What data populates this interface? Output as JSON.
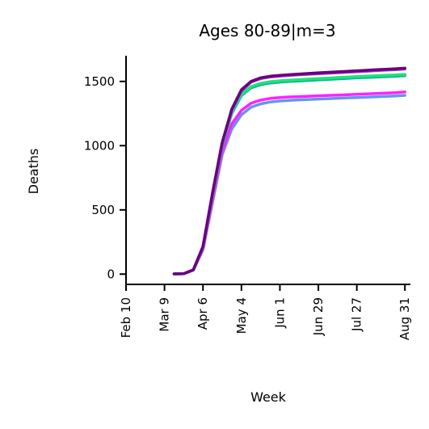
{
  "chart_data": {
    "type": "line",
    "title": "Ages 80-89|m=3",
    "xlabel": "Week",
    "ylabel": "Deaths",
    "xlim": [
      "2020-02-10",
      "2020-09-04"
    ],
    "ylim": [
      -80,
      1700
    ],
    "grid": false,
    "legend": "none",
    "x_ticks": [
      {
        "date": "2020-02-10",
        "label": "Feb 10"
      },
      {
        "date": "2020-03-09",
        "label": "Mar 9"
      },
      {
        "date": "2020-04-06",
        "label": "Apr 6"
      },
      {
        "date": "2020-05-04",
        "label": "May 4"
      },
      {
        "date": "2020-06-01",
        "label": "Jun 1"
      },
      {
        "date": "2020-06-29",
        "label": "Jun 29"
      },
      {
        "date": "2020-07-27",
        "label": "Jul 27"
      },
      {
        "date": "2020-08-31",
        "label": "Aug 31"
      }
    ],
    "y_ticks": [
      {
        "value": 0,
        "label": "0"
      },
      {
        "value": 500,
        "label": "500"
      },
      {
        "value": 1000,
        "label": "1000"
      },
      {
        "value": 1500,
        "label": "1500"
      }
    ],
    "x": [
      "2020-03-16",
      "2020-03-23",
      "2020-03-30",
      "2020-04-06",
      "2020-04-13",
      "2020-04-20",
      "2020-04-27",
      "2020-05-04",
      "2020-05-11",
      "2020-05-18",
      "2020-05-25",
      "2020-06-01",
      "2020-06-08",
      "2020-06-15",
      "2020-06-22",
      "2020-06-29",
      "2020-07-06",
      "2020-07-13",
      "2020-07-20",
      "2020-07-27",
      "2020-08-03",
      "2020-08-10",
      "2020-08-17",
      "2020-08-24",
      "2020-08-31"
    ],
    "series": [
      {
        "color": "#6495ed",
        "values": [
          2,
          3,
          30,
          190,
          560,
          930,
          1130,
          1240,
          1300,
          1325,
          1340,
          1348,
          1353,
          1357,
          1360,
          1363,
          1366,
          1369,
          1372,
          1375,
          1378,
          1381,
          1384,
          1387,
          1392
        ]
      },
      {
        "color": "#ff22ff",
        "values": [
          2,
          3,
          30,
          195,
          580,
          960,
          1170,
          1275,
          1330,
          1355,
          1368,
          1375,
          1379,
          1382,
          1385,
          1388,
          1391,
          1394,
          1397,
          1400,
          1403,
          1406,
          1409,
          1412,
          1418
        ]
      },
      {
        "color": "#00b894",
        "values": [
          2,
          3,
          32,
          205,
          610,
          1000,
          1250,
          1390,
          1450,
          1475,
          1488,
          1495,
          1500,
          1504,
          1508,
          1512,
          1516,
          1520,
          1524,
          1528,
          1531,
          1534,
          1537,
          1540,
          1545
        ]
      },
      {
        "color": "#22e07a",
        "values": [
          2,
          3,
          32,
          208,
          618,
          1010,
          1260,
          1400,
          1460,
          1485,
          1498,
          1505,
          1510,
          1514,
          1518,
          1522,
          1526,
          1530,
          1534,
          1538,
          1541,
          1544,
          1547,
          1550,
          1555
        ]
      },
      {
        "color": "#9932cc",
        "values": [
          2,
          3,
          33,
          212,
          625,
          1018,
          1275,
          1425,
          1495,
          1522,
          1535,
          1542,
          1547,
          1552,
          1556,
          1560,
          1564,
          1568,
          1572,
          1576,
          1580,
          1584,
          1588,
          1592,
          1597
        ]
      },
      {
        "color": "#6a0080",
        "values": [
          2,
          3,
          34,
          215,
          635,
          1025,
          1285,
          1435,
          1500,
          1528,
          1541,
          1548,
          1553,
          1558,
          1562,
          1567,
          1571,
          1575,
          1579,
          1583,
          1587,
          1591,
          1595,
          1599,
          1603
        ]
      }
    ]
  }
}
